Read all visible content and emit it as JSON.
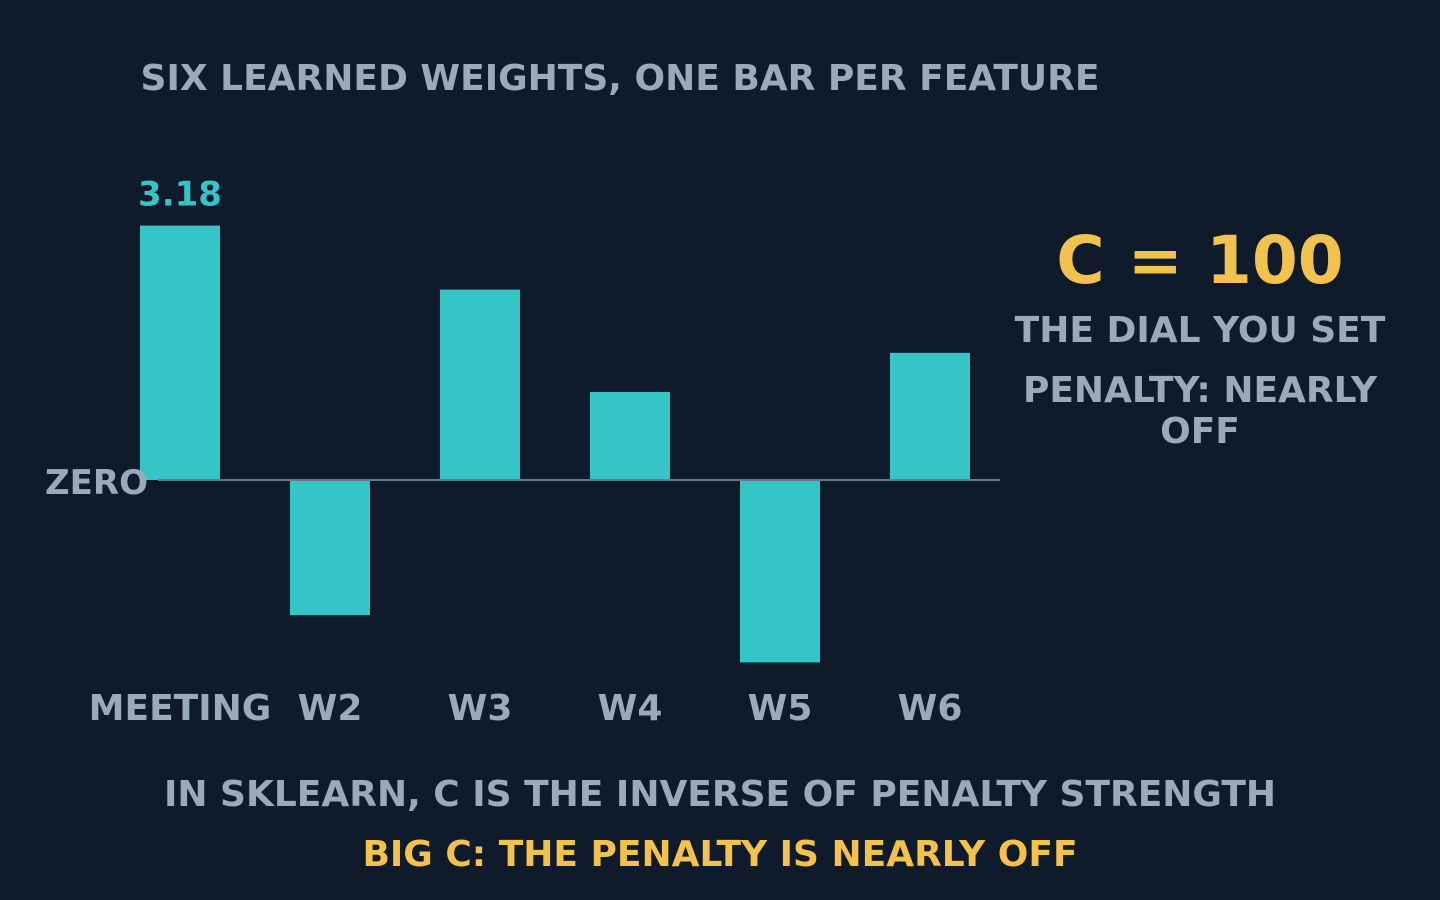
{
  "chart_data": {
    "type": "bar",
    "title": "SIX LEARNED WEIGHTS, ONE BAR PER FEATURE",
    "categories": [
      "MEETING",
      "W2",
      "W3",
      "W4",
      "W5",
      "W6"
    ],
    "values": [
      3.18,
      -1.69,
      2.38,
      1.1,
      -2.28,
      1.59
    ],
    "data_labels": [
      "3.18",
      "",
      "",
      "",
      "",
      ""
    ],
    "zero_label": "ZERO",
    "ylim": [
      -2.8,
      3.6
    ],
    "grid": false,
    "colors": {
      "bar": "#36c5c6",
      "axis": "#6b7886",
      "label": "#9aaabb",
      "value_label": "#36c5c6"
    }
  },
  "side_panel": {
    "c_value": "C = 100",
    "dial_caption": "THE DIAL YOU SET",
    "penalty_caption": "PENALTY: NEARLY OFF"
  },
  "footer": {
    "line1": "IN SKLEARN, C IS THE INVERSE OF PENALTY STRENGTH",
    "line2": "BIG C: THE PENALTY IS NEARLY OFF"
  },
  "colors": {
    "background": "#0f1b2a",
    "accent": "#f2c14e",
    "text": "#9aaabb"
  }
}
